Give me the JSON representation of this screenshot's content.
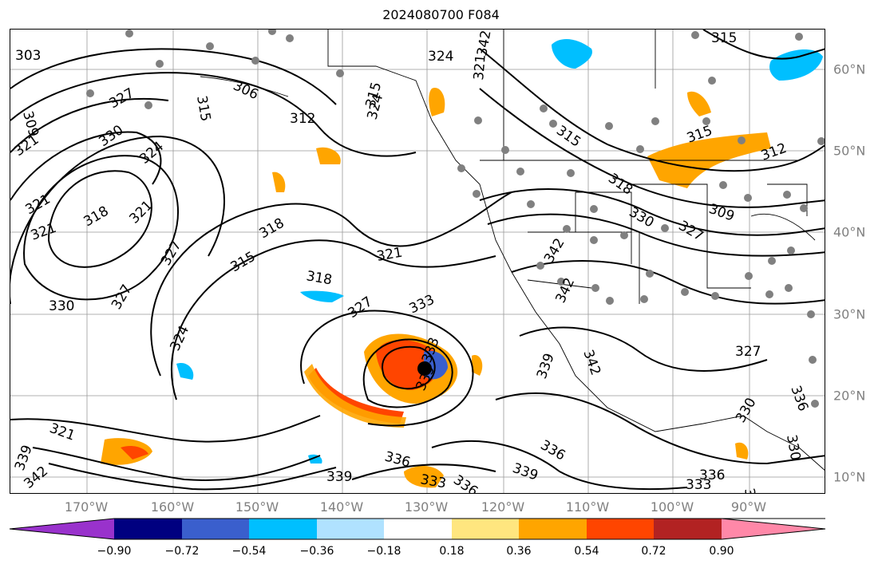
{
  "title": "2024080700 F084",
  "lat_labels": [
    "60°N",
    "50°N",
    "40°N",
    "30°N",
    "20°N",
    "10°N"
  ],
  "lon_labels": [
    "170°W",
    "160°W",
    "150°W",
    "140°W",
    "130°W",
    "120°W",
    "110°W",
    "100°W",
    "90°W"
  ],
  "colorbar": {
    "labels": [
      "−0.90",
      "−0.72",
      "−0.54",
      "−0.36",
      "−0.18",
      "0.18",
      "0.36",
      "0.54",
      "0.72",
      "0.90"
    ],
    "colors": [
      "#9932cc",
      "#000080",
      "#3a5fcd",
      "#00bfff",
      "#b0e2ff",
      "#ffffff",
      "#ffe67f",
      "#ffa500",
      "#ff4500",
      "#b22222",
      "#ff88a8"
    ]
  },
  "contour_labels": [
    "303",
    "309",
    "321",
    "327",
    "330",
    "318",
    "321",
    "330",
    "327",
    "324",
    "327",
    "321",
    "324",
    "321",
    "339",
    "342",
    "306",
    "312",
    "315",
    "318",
    "321",
    "318",
    "315",
    "324",
    "327",
    "333",
    "336",
    "339",
    "336",
    "333",
    "336",
    "339",
    "324",
    "321",
    "315",
    "318",
    "315",
    "330",
    "327",
    "315",
    "312",
    "309",
    "342",
    "339",
    "342",
    "327",
    "336",
    "333",
    "339",
    "342",
    "330",
    "330",
    "336",
    "333",
    "315",
    "333",
    "321",
    "342"
  ],
  "colors": {
    "contour": "#000000",
    "grid": "#999999",
    "station_marker": "#808080",
    "storm_center": "#000000"
  }
}
